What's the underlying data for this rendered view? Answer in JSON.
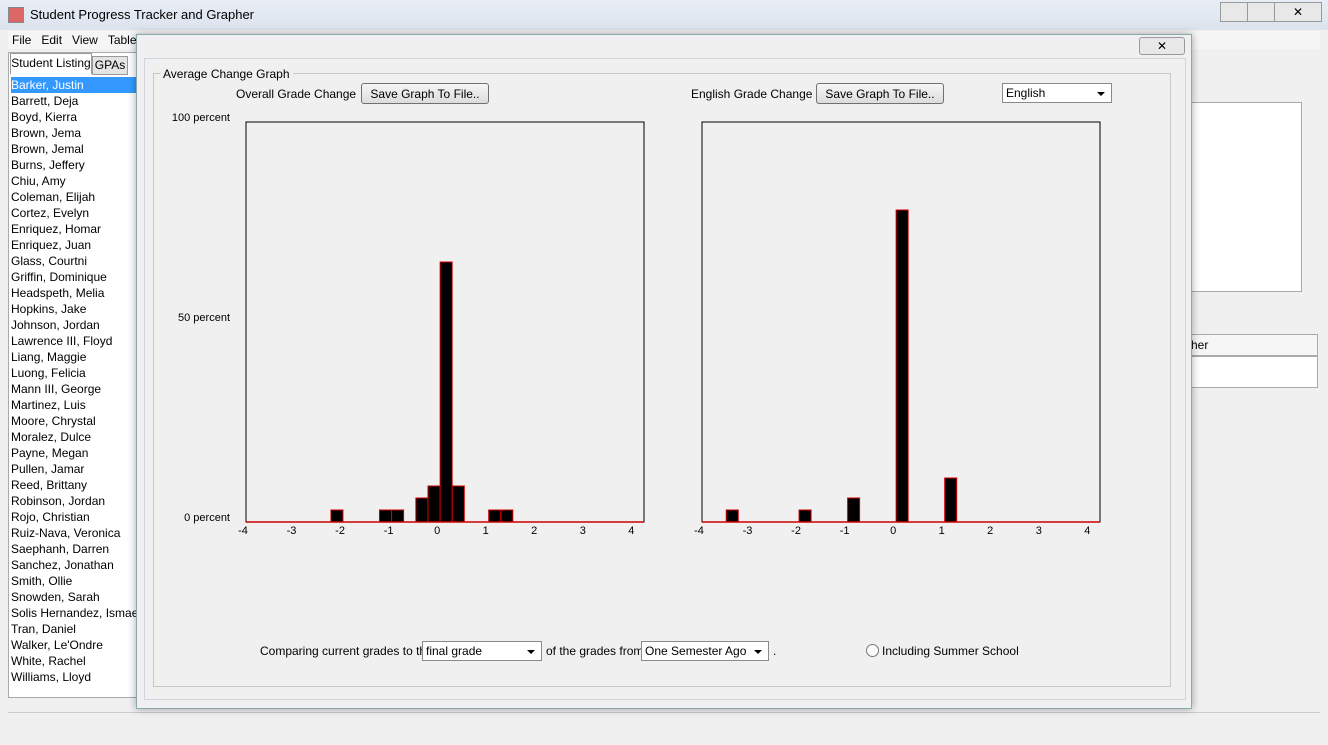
{
  "window": {
    "title": "Student Progress Tracker and Grapher"
  },
  "menu": [
    "File",
    "Edit",
    "View",
    "Table"
  ],
  "tabs": [
    "Student Listing",
    "GPAs"
  ],
  "students": [
    "Barker, Justin",
    "Barrett, Deja",
    "Boyd, Kierra",
    "Brown, Jema",
    "Brown, Jemal",
    "Burns, Jeffery",
    "Chiu, Amy",
    "Coleman, Elijah",
    "Cortez, Evelyn",
    "Enriquez, Homar",
    "Enriquez, Juan",
    "Glass, Courtni",
    "Griffin, Dominique",
    "Headspeth, Melia",
    "Hopkins, Jake",
    "Johnson, Jordan",
    "Lawrence III, Floyd",
    "Liang, Maggie",
    "Luong, Felicia",
    "Mann III, George",
    "Martinez, Luis",
    "Moore, Chrystal",
    "Moralez, Dulce",
    "Payne, Megan",
    "Pullen, Jamar",
    "Reed, Brittany",
    "Robinson, Jordan",
    "Rojo, Christian",
    "Ruiz-Nava, Veronica",
    "Saephanh, Darren",
    "Sanchez, Jonathan",
    "Smith, Ollie",
    "Snowden, Sarah",
    "Solis Hernandez, Ismael",
    "Tran, Daniel",
    "Walker, Le'Ondre",
    "White, Rachel",
    "Williams, Lloyd"
  ],
  "background": {
    "table_header": "her"
  },
  "dialog": {
    "group_title": "Average Change Graph",
    "save_buttons": [
      "Save Graph To File..",
      "Save Graph To File.."
    ],
    "subject": "English",
    "footer": {
      "lead": "Comparing current grades to the",
      "grade_select": "final grade",
      "middle": "of the grades from",
      "period_select": "One Semester Ago",
      "end": ".",
      "option": "Including Summer School"
    }
  },
  "chart_data": [
    {
      "type": "bar",
      "title": "Overall Grade Change",
      "x": [
        -2.25,
        -1.25,
        -1,
        -0.5,
        -0.25,
        0,
        0.25,
        1,
        1.25
      ],
      "values": [
        3,
        3,
        3,
        6,
        9,
        65,
        9,
        3,
        3
      ],
      "color": "#000000",
      "edge_color": "#cc0000",
      "xlim": [
        -4,
        4.2
      ],
      "xticks": [
        -4,
        -3,
        -2,
        -1,
        0,
        1,
        2,
        3,
        4
      ],
      "ylim": [
        0,
        100
      ],
      "yticks": [
        {
          "value": 0,
          "label": "0 percent"
        },
        {
          "value": 50,
          "label": "50 percent"
        },
        {
          "value": 100,
          "label": "100 percent"
        }
      ]
    },
    {
      "type": "bar",
      "title": "English Grade Change",
      "x": [
        -3.5,
        -2,
        -1,
        0,
        1
      ],
      "values": [
        3,
        3,
        6,
        78,
        11
      ],
      "color": "#000000",
      "edge_color": "#cc0000",
      "xlim": [
        -4,
        4.2
      ],
      "xticks": [
        -4,
        -3,
        -2,
        -1,
        0,
        1,
        2,
        3,
        4
      ],
      "ylim": [
        0,
        100
      ]
    }
  ]
}
